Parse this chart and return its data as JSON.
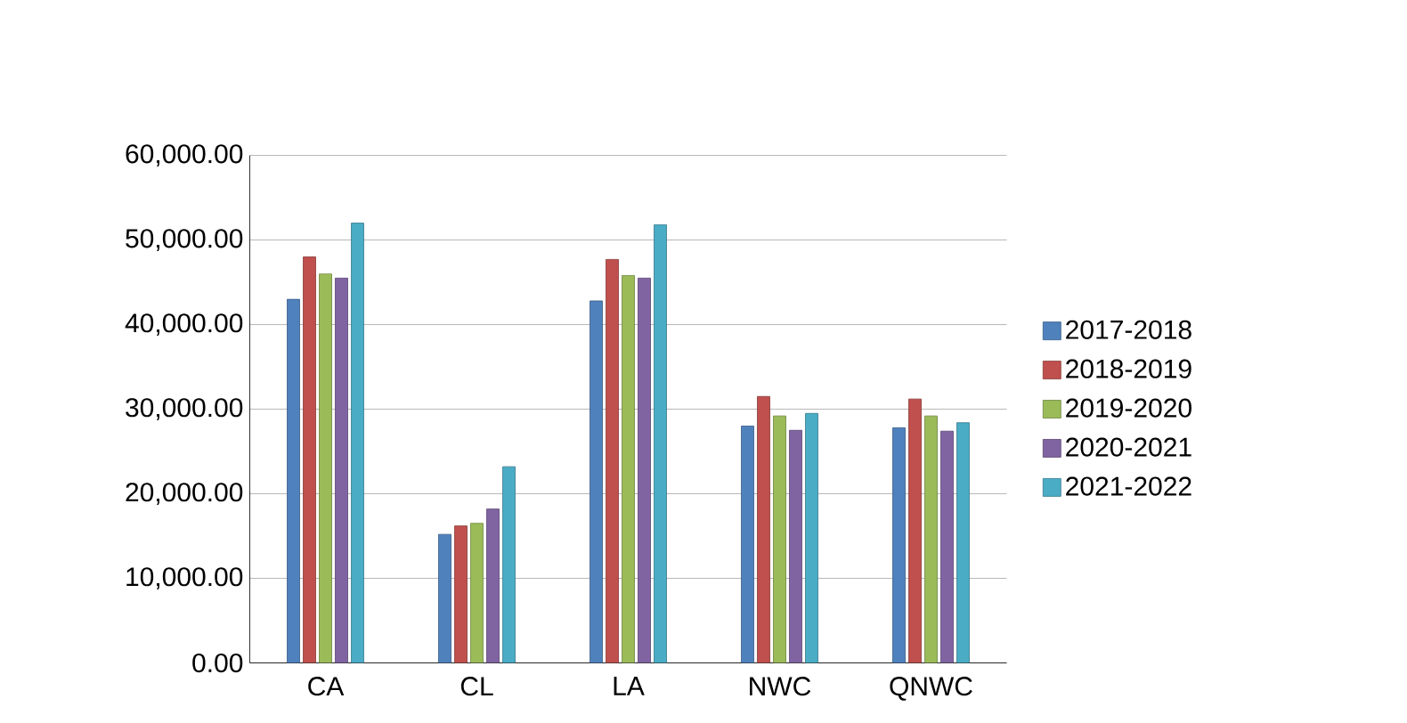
{
  "chart_data": {
    "type": "bar",
    "categories": [
      "CA",
      "CL",
      "LA",
      "NWC",
      "QNWC"
    ],
    "series": [
      {
        "name": "2017-2018",
        "color": "#4f81bd",
        "values": [
          43000,
          15200,
          42800,
          28000,
          27800
        ]
      },
      {
        "name": "2018-2019",
        "color": "#c0504d",
        "values": [
          48000,
          16200,
          47700,
          31500,
          31200
        ]
      },
      {
        "name": "2019-2020",
        "color": "#9bbb59",
        "values": [
          46000,
          16500,
          45800,
          29200,
          29200
        ]
      },
      {
        "name": "2020-2021",
        "color": "#8064a2",
        "values": [
          45500,
          18200,
          45500,
          27500,
          27400
        ]
      },
      {
        "name": "2021-2022",
        "color": "#4bacc6",
        "values": [
          52000,
          23200,
          51800,
          29500,
          28400
        ]
      }
    ],
    "ylim": [
      0,
      60000
    ],
    "yticks": [
      {
        "value": 0,
        "label": "0.00"
      },
      {
        "value": 10000,
        "label": "10,000.00"
      },
      {
        "value": 20000,
        "label": "20,000.00"
      },
      {
        "value": 30000,
        "label": "30,000.00"
      },
      {
        "value": 40000,
        "label": "40,000.00"
      },
      {
        "value": 50000,
        "label": "50,000.00"
      },
      {
        "value": 60000,
        "label": "60,000.00"
      }
    ],
    "grid": "y",
    "legend": "right"
  }
}
